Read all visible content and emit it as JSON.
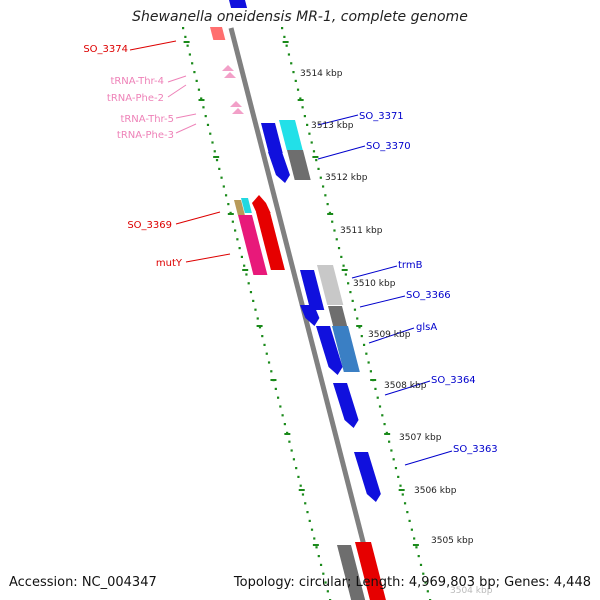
{
  "title": "Shewanella oneidensis MR-1, complete genome",
  "footer": {
    "accession": "Accession: NC_004347",
    "stats": "Topology: circular; Length: 4,969,803 bp; Genes: 4,448"
  },
  "colors": {
    "backbone": "#808080",
    "tick_dots": "#1a8a1a",
    "forward_gene": "#e60000",
    "forward_gene_alt": "#e8197a",
    "reverse_gene": "#1010dd",
    "reverse_gene_alt": "#3a7fc4",
    "trna": "#f2a0c8",
    "label_reverse": "#0000cc",
    "label_forward": "#dd0000",
    "label_trna": "#ee82b8"
  },
  "ruler_labels": [
    "3514 kbp",
    "3513 kbp",
    "3512 kbp",
    "3511 kbp",
    "3510 kbp",
    "3509 kbp",
    "3508 kbp",
    "3507 kbp",
    "3506 kbp",
    "3505 kbp",
    "3504 kbp"
  ],
  "left_labels": [
    "SO_3374",
    "tRNA-Thr-4",
    "tRNA-Phe-2",
    "tRNA-Thr-5",
    "tRNA-Phe-3",
    "SO_3369",
    "mutY"
  ],
  "right_labels": [
    "SO_3371",
    "SO_3370",
    "trmB",
    "SO_3366",
    "glsA",
    "SO_3364",
    "SO_3363"
  ]
}
